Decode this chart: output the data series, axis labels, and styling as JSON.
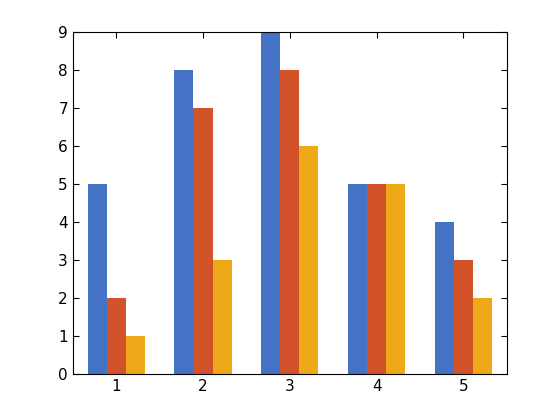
{
  "categories": [
    1,
    2,
    3,
    4,
    5
  ],
  "series": [
    [
      5,
      8,
      9,
      5,
      4
    ],
    [
      2,
      7,
      8,
      5,
      3
    ],
    [
      1,
      3,
      6,
      5,
      2
    ]
  ],
  "colors": [
    "#4472C4",
    "#D2522A",
    "#EFA818"
  ],
  "ylim": [
    0,
    9
  ],
  "yticks": [
    0,
    1,
    2,
    3,
    4,
    5,
    6,
    7,
    8,
    9
  ],
  "xticks": [
    1,
    2,
    3,
    4,
    5
  ],
  "bar_width": 0.22,
  "figsize": [
    5.6,
    4.2
  ],
  "dpi": 100,
  "background_color": "#ffffff",
  "axes_color": "#ffffff",
  "tick_fontsize": 11,
  "xlim": [
    0.5,
    5.5
  ]
}
